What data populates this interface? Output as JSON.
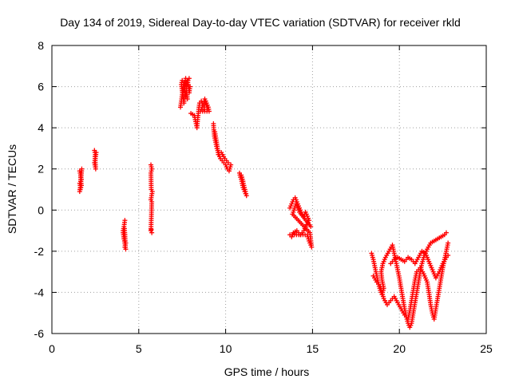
{
  "chart_data": {
    "type": "scatter",
    "title": "Day 134 of 2019, Sidereal Day-to-day VTEC variation (SDTVAR) for receiver rkld",
    "xlabel": "GPS time / hours",
    "ylabel": "SDTVAR / TECUs",
    "xlim": [
      0,
      25
    ],
    "ylim": [
      -6,
      8
    ],
    "xticks": [
      0,
      5,
      10,
      15,
      20,
      25
    ],
    "yticks": [
      -6,
      -4,
      -2,
      0,
      2,
      4,
      6,
      8
    ],
    "xtick_labels": [
      "0",
      "5",
      "10",
      "15",
      "20",
      "25"
    ],
    "ytick_labels": [
      "-6",
      "-4",
      "-2",
      "0",
      "2",
      "4",
      "6",
      "8"
    ],
    "grid": true,
    "marker": "+",
    "series": [
      {
        "name": "SDTVAR",
        "color": "#ff0000",
        "segments": [
          [
            [
              1.6,
              1.9
            ],
            [
              1.65,
              1.7
            ],
            [
              1.7,
              1.5
            ],
            [
              1.6,
              1.3
            ],
            [
              1.65,
              1.1
            ],
            [
              1.6,
              0.9
            ],
            [
              1.7,
              1.2
            ],
            [
              1.65,
              1.6
            ],
            [
              1.72,
              2.0
            ],
            [
              1.62,
              1.0
            ]
          ],
          [
            [
              2.45,
              2.9
            ],
            [
              2.5,
              2.7
            ],
            [
              2.55,
              2.8
            ],
            [
              2.5,
              2.5
            ],
            [
              2.45,
              2.3
            ],
            [
              2.5,
              2.1
            ],
            [
              2.52,
              2.0
            ],
            [
              2.48,
              2.6
            ]
          ],
          [
            [
              4.2,
              -0.5
            ],
            [
              4.15,
              -0.8
            ],
            [
              4.1,
              -1.0
            ],
            [
              4.2,
              -1.2
            ],
            [
              4.15,
              -1.4
            ],
            [
              4.25,
              -1.6
            ],
            [
              4.2,
              -1.8
            ],
            [
              4.25,
              -1.9
            ],
            [
              4.1,
              -1.1
            ],
            [
              4.18,
              -0.9
            ],
            [
              4.22,
              -1.5
            ]
          ],
          [
            [
              5.7,
              2.2
            ],
            [
              5.75,
              2.0
            ],
            [
              5.7,
              1.8
            ],
            [
              5.72,
              1.0
            ],
            [
              5.78,
              0.9
            ],
            [
              5.7,
              0.5
            ],
            [
              5.75,
              0.4
            ],
            [
              5.7,
              -1.0
            ],
            [
              5.75,
              -1.1
            ],
            [
              5.72,
              -0.95
            ]
          ],
          [
            [
              7.4,
              5.0
            ],
            [
              7.45,
              5.3
            ],
            [
              7.5,
              5.6
            ],
            [
              7.55,
              6.0
            ],
            [
              7.6,
              6.2
            ],
            [
              7.65,
              5.8
            ],
            [
              7.7,
              5.5
            ],
            [
              7.75,
              5.9
            ],
            [
              7.8,
              6.3
            ],
            [
              7.85,
              6.1
            ],
            [
              7.9,
              5.7
            ],
            [
              7.95,
              6.0
            ],
            [
              7.5,
              6.3
            ],
            [
              7.45,
              6.1
            ],
            [
              7.6,
              5.2
            ],
            [
              7.7,
              6.4
            ],
            [
              7.8,
              5.4
            ],
            [
              7.55,
              5.7
            ],
            [
              7.65,
              6.0
            ],
            [
              7.9,
              6.4
            ]
          ],
          [
            [
              8.0,
              4.7
            ],
            [
              8.2,
              4.6
            ],
            [
              8.3,
              4.2
            ],
            [
              8.35,
              4.0
            ],
            [
              8.4,
              4.5
            ],
            [
              8.45,
              4.9
            ],
            [
              8.5,
              5.2
            ],
            [
              8.6,
              5.3
            ],
            [
              8.7,
              5.1
            ],
            [
              8.8,
              5.4
            ],
            [
              8.9,
              5.2
            ],
            [
              9.0,
              5.0
            ],
            [
              9.05,
              4.8
            ],
            [
              8.55,
              4.8
            ],
            [
              8.65,
              5.0
            ],
            [
              8.75,
              4.9
            ],
            [
              8.85,
              5.3
            ],
            [
              8.95,
              4.9
            ]
          ],
          [
            [
              9.3,
              4.2
            ],
            [
              9.32,
              3.9
            ],
            [
              9.35,
              3.6
            ],
            [
              9.4,
              3.4
            ],
            [
              9.45,
              3.2
            ],
            [
              9.5,
              3.0
            ],
            [
              9.55,
              2.9
            ],
            [
              9.6,
              2.8
            ],
            [
              9.65,
              2.6
            ],
            [
              9.7,
              2.5
            ],
            [
              9.8,
              2.4
            ],
            [
              9.9,
              2.3
            ],
            [
              10.0,
              2.2
            ],
            [
              10.1,
              2.0
            ],
            [
              10.2,
              1.9
            ],
            [
              10.3,
              2.2
            ],
            [
              9.38,
              3.8
            ],
            [
              9.48,
              3.3
            ],
            [
              9.58,
              2.7
            ],
            [
              9.75,
              2.8
            ],
            [
              9.95,
              2.5
            ],
            [
              10.15,
              2.3
            ]
          ],
          [
            [
              10.8,
              1.8
            ],
            [
              10.85,
              1.6
            ],
            [
              10.9,
              1.5
            ],
            [
              10.95,
              1.3
            ],
            [
              11.0,
              1.1
            ],
            [
              11.05,
              1.0
            ],
            [
              11.1,
              0.9
            ],
            [
              11.15,
              0.8
            ],
            [
              11.2,
              0.7
            ],
            [
              10.9,
              1.7
            ],
            [
              11.0,
              1.4
            ]
          ],
          [
            [
              13.7,
              0.1
            ],
            [
              13.8,
              0.3
            ],
            [
              13.9,
              0.5
            ],
            [
              14.0,
              0.6
            ],
            [
              14.1,
              0.4
            ],
            [
              14.2,
              0.2
            ],
            [
              14.3,
              0.0
            ],
            [
              14.4,
              -0.2
            ],
            [
              14.5,
              -0.3
            ],
            [
              14.6,
              -0.1
            ],
            [
              14.7,
              -0.3
            ],
            [
              14.8,
              -0.5
            ],
            [
              14.6,
              -0.8
            ],
            [
              14.5,
              -1.0
            ],
            [
              14.3,
              -1.2
            ],
            [
              14.1,
              -1.0
            ],
            [
              13.9,
              -1.1
            ],
            [
              13.8,
              -1.3
            ],
            [
              13.7,
              -1.2
            ],
            [
              14.7,
              -1.2
            ],
            [
              14.8,
              -1.5
            ],
            [
              14.9,
              -1.7
            ],
            [
              14.95,
              -1.8
            ],
            [
              14.85,
              -1.1
            ],
            [
              13.85,
              -0.2
            ],
            [
              14.05,
              0.3
            ],
            [
              14.25,
              -0.1
            ],
            [
              14.9,
              -0.8
            ]
          ],
          [
            [
              18.4,
              -2.1
            ],
            [
              18.5,
              -2.4
            ],
            [
              18.6,
              -2.8
            ],
            [
              18.7,
              -3.2
            ],
            [
              18.8,
              -3.6
            ],
            [
              18.9,
              -3.9
            ],
            [
              19.0,
              -4.1
            ],
            [
              19.1,
              -3.8
            ],
            [
              19.0,
              -3.4
            ],
            [
              18.95,
              -3.0
            ],
            [
              19.05,
              -2.6
            ],
            [
              19.2,
              -2.3
            ],
            [
              19.4,
              -2.0
            ],
            [
              19.6,
              -1.7
            ],
            [
              19.7,
              -2.1
            ],
            [
              19.8,
              -2.5
            ],
            [
              19.9,
              -2.9
            ],
            [
              20.0,
              -3.3
            ],
            [
              20.1,
              -3.8
            ],
            [
              20.2,
              -4.3
            ],
            [
              20.3,
              -4.8
            ],
            [
              20.4,
              -5.2
            ],
            [
              20.5,
              -5.5
            ],
            [
              20.6,
              -5.7
            ],
            [
              20.7,
              -5.5
            ],
            [
              20.8,
              -5.0
            ],
            [
              20.9,
              -4.5
            ],
            [
              21.0,
              -4.0
            ],
            [
              21.1,
              -3.5
            ],
            [
              21.2,
              -3.0
            ],
            [
              21.3,
              -2.6
            ],
            [
              21.4,
              -2.3
            ],
            [
              21.6,
              -1.9
            ],
            [
              21.8,
              -1.6
            ],
            [
              22.0,
              -1.5
            ],
            [
              22.2,
              -1.4
            ],
            [
              22.4,
              -1.3
            ],
            [
              22.6,
              -1.2
            ],
            [
              22.7,
              -1.1
            ]
          ],
          [
            [
              18.5,
              -3.2
            ],
            [
              18.7,
              -3.5
            ],
            [
              18.9,
              -3.7
            ],
            [
              19.1,
              -4.3
            ],
            [
              19.3,
              -4.6
            ],
            [
              19.5,
              -4.4
            ],
            [
              19.7,
              -4.2
            ],
            [
              19.9,
              -4.5
            ],
            [
              20.1,
              -4.8
            ],
            [
              20.3,
              -5.1
            ],
            [
              20.5,
              -5.3
            ],
            [
              20.6,
              -4.9
            ],
            [
              20.7,
              -4.4
            ],
            [
              20.8,
              -3.9
            ],
            [
              20.9,
              -3.4
            ],
            [
              21.0,
              -3.0
            ],
            [
              21.2,
              -2.8
            ],
            [
              21.4,
              -3.1
            ],
            [
              21.6,
              -3.5
            ],
            [
              21.7,
              -4.0
            ],
            [
              21.8,
              -4.6
            ],
            [
              21.9,
              -5.0
            ],
            [
              22.0,
              -5.3
            ],
            [
              22.1,
              -4.8
            ],
            [
              22.2,
              -4.3
            ],
            [
              22.3,
              -3.8
            ],
            [
              22.4,
              -3.3
            ],
            [
              22.5,
              -2.8
            ],
            [
              22.6,
              -2.4
            ],
            [
              22.7,
              -2.0
            ],
            [
              22.8,
              -1.6
            ]
          ],
          [
            [
              19.5,
              -2.6
            ],
            [
              19.7,
              -2.4
            ],
            [
              19.9,
              -2.3
            ],
            [
              20.1,
              -2.4
            ],
            [
              20.3,
              -2.5
            ],
            [
              20.5,
              -2.3
            ],
            [
              20.7,
              -2.4
            ],
            [
              20.9,
              -2.6
            ],
            [
              21.1,
              -2.3
            ],
            [
              21.3,
              -2.0
            ],
            [
              21.5,
              -2.1
            ],
            [
              21.7,
              -2.5
            ],
            [
              21.9,
              -2.9
            ],
            [
              22.1,
              -3.3
            ],
            [
              22.3,
              -3.0
            ],
            [
              22.5,
              -2.6
            ],
            [
              22.7,
              -2.3
            ],
            [
              22.8,
              -2.2
            ]
          ]
        ]
      }
    ]
  }
}
